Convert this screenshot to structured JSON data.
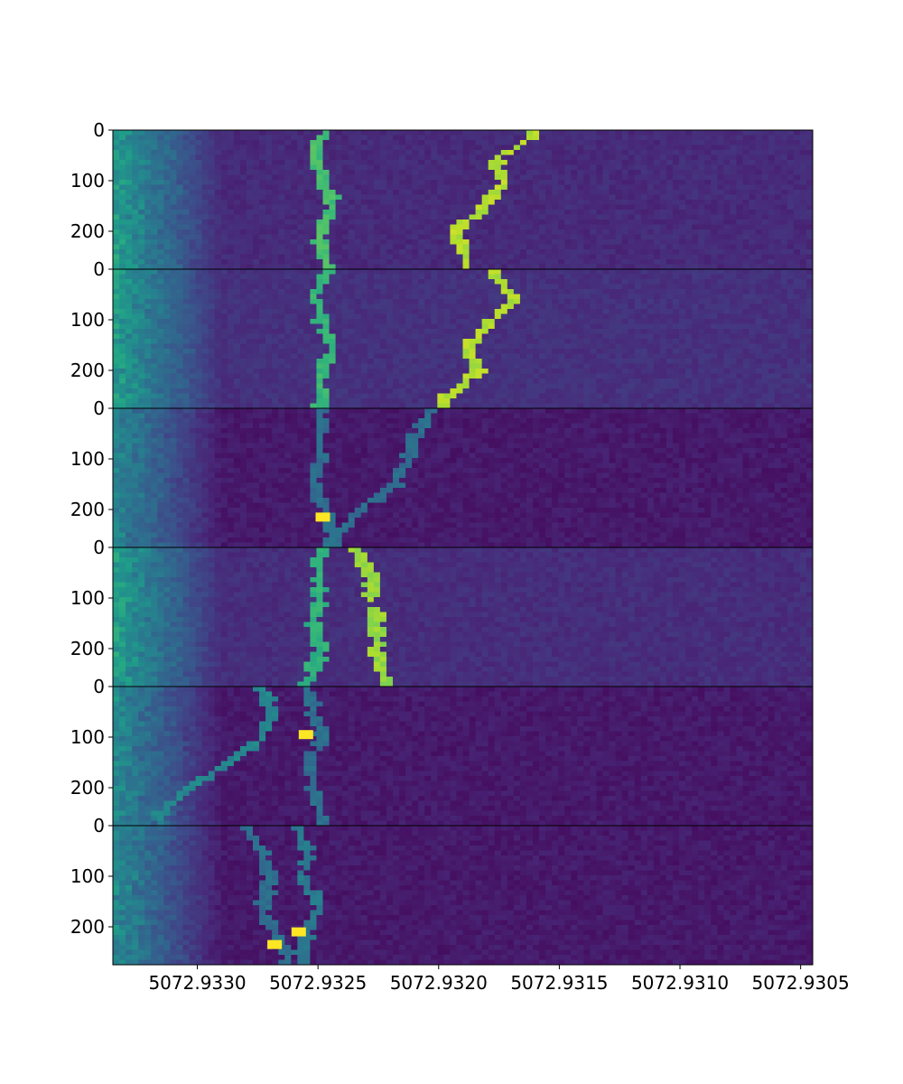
{
  "chart_data": {
    "type": "heatmap",
    "colormap": "viridis",
    "x_axis": {
      "direction": "reversed",
      "range": [
        5072.93335,
        5072.93045
      ],
      "ticks": [
        5072.933,
        5072.9325,
        5072.932,
        5072.9315,
        5072.931,
        5072.9305
      ],
      "tick_labels": [
        "5072.9330",
        "5072.9325",
        "5072.9320",
        "5072.9315",
        "5072.9310",
        "5072.9305"
      ]
    },
    "y_axis": {
      "range": [
        0,
        275
      ],
      "ticks": [
        0,
        100,
        200
      ],
      "tick_labels": [
        "0",
        "100",
        "200"
      ]
    },
    "panels": [
      {
        "background": 0.12,
        "edge_glow": 0.42,
        "tracks": [
          {
            "intensity": 0.74,
            "points": [
              [
                0,
                5072.93249
              ],
              [
                50,
                5072.93253
              ],
              [
                100,
                5072.93248
              ],
              [
                150,
                5072.93245
              ],
              [
                200,
                5072.9325
              ],
              [
                250,
                5072.93248
              ],
              [
                275,
                5072.93246
              ]
            ]
          },
          {
            "intensity": 0.93,
            "points": [
              [
                0,
                5072.9316
              ],
              [
                50,
                5072.93177
              ],
              [
                100,
                5072.93175
              ],
              [
                150,
                5072.93183
              ],
              [
                200,
                5072.93195
              ],
              [
                250,
                5072.9319
              ],
              [
                275,
                5072.9319
              ]
            ]
          }
        ]
      },
      {
        "background": 0.14,
        "edge_glow": 0.4,
        "tracks": [
          {
            "intensity": 0.7,
            "points": [
              [
                0,
                5072.93248
              ],
              [
                50,
                5072.93253
              ],
              [
                100,
                5072.9325
              ],
              [
                150,
                5072.93245
              ],
              [
                200,
                5072.9325
              ],
              [
                250,
                5072.9325
              ],
              [
                275,
                5072.93252
              ]
            ]
          },
          {
            "intensity": 0.92,
            "points": [
              [
                0,
                5072.9318
              ],
              [
                50,
                5072.9317
              ],
              [
                100,
                5072.9318
              ],
              [
                150,
                5072.9319
              ],
              [
                200,
                5072.93185
              ],
              [
                250,
                5072.93198
              ],
              [
                275,
                5072.932
              ]
            ]
          }
        ]
      },
      {
        "background": 0.07,
        "edge_glow": 0.38,
        "tracks": [
          {
            "intensity": 0.4,
            "points": [
              [
                0,
                5072.9325
              ],
              [
                50,
                5072.9325
              ],
              [
                100,
                5072.9325
              ],
              [
                150,
                5072.93253
              ],
              [
                200,
                5072.93248
              ],
              [
                250,
                5072.93245
              ],
              [
                275,
                5072.93245
              ]
            ]
          },
          {
            "intensity": 0.4,
            "points": [
              [
                0,
                5072.93205
              ],
              [
                50,
                5072.9321
              ],
              [
                100,
                5072.93215
              ],
              [
                150,
                5072.9322
              ],
              [
                200,
                5072.93235
              ],
              [
                250,
                5072.93245
              ],
              [
                275,
                5072.93245
              ]
            ]
          }
        ]
      },
      {
        "background": 0.13,
        "edge_glow": 0.42,
        "tracks": [
          {
            "intensity": 0.68,
            "points": [
              [
                0,
                5072.9325
              ],
              [
                50,
                5072.93252
              ],
              [
                100,
                5072.9325
              ],
              [
                150,
                5072.93253
              ],
              [
                200,
                5072.9325
              ],
              [
                250,
                5072.93255
              ],
              [
                275,
                5072.93258
              ]
            ]
          },
          {
            "intensity": 0.88,
            "points": [
              [
                0,
                5072.93235
              ],
              [
                50,
                5072.9323
              ],
              [
                100,
                5072.93228
              ],
              [
                150,
                5072.93228
              ],
              [
                200,
                5072.93227
              ],
              [
                250,
                5072.93225
              ],
              [
                275,
                5072.9322
              ]
            ]
          }
        ]
      },
      {
        "background": 0.07,
        "edge_glow": 0.4,
        "tracks": [
          {
            "intensity": 0.4,
            "points": [
              [
                0,
                5072.93255
              ],
              [
                50,
                5072.93253
              ],
              [
                100,
                5072.9325
              ],
              [
                150,
                5072.93255
              ],
              [
                200,
                5072.93253
              ],
              [
                250,
                5072.9325
              ],
              [
                275,
                5072.93248
              ]
            ]
          },
          {
            "intensity": 0.5,
            "points": [
              [
                0,
                5072.93275
              ],
              [
                50,
                5072.9327
              ],
              [
                100,
                5072.93275
              ],
              [
                150,
                5072.9329
              ],
              [
                200,
                5072.93305
              ],
              [
                250,
                5072.93318
              ],
              [
                275,
                5072.93315
              ]
            ]
          }
        ]
      },
      {
        "background": 0.07,
        "edge_glow": 0.4,
        "tracks": [
          {
            "intensity": 0.4,
            "points": [
              [
                0,
                5072.9328
              ],
              [
                50,
                5072.93275
              ],
              [
                100,
                5072.9327
              ],
              [
                150,
                5072.93275
              ],
              [
                200,
                5072.9327
              ],
              [
                250,
                5072.93265
              ],
              [
                275,
                5072.93265
              ]
            ]
          },
          {
            "intensity": 0.45,
            "points": [
              [
                0,
                5072.9326
              ],
              [
                50,
                5072.93255
              ],
              [
                100,
                5072.93258
              ],
              [
                150,
                5072.9325
              ],
              [
                200,
                5072.93255
              ],
              [
                250,
                5072.93258
              ],
              [
                275,
                5072.93258
              ]
            ]
          }
        ]
      }
    ],
    "hot_spots": [
      {
        "panel": 2,
        "y": 215,
        "x": 5072.93248
      },
      {
        "panel": 4,
        "y": 95,
        "x": 5072.93255
      },
      {
        "panel": 5,
        "y": 210,
        "x": 5072.93258
      },
      {
        "panel": 5,
        "y": 235,
        "x": 5072.93268
      }
    ]
  }
}
